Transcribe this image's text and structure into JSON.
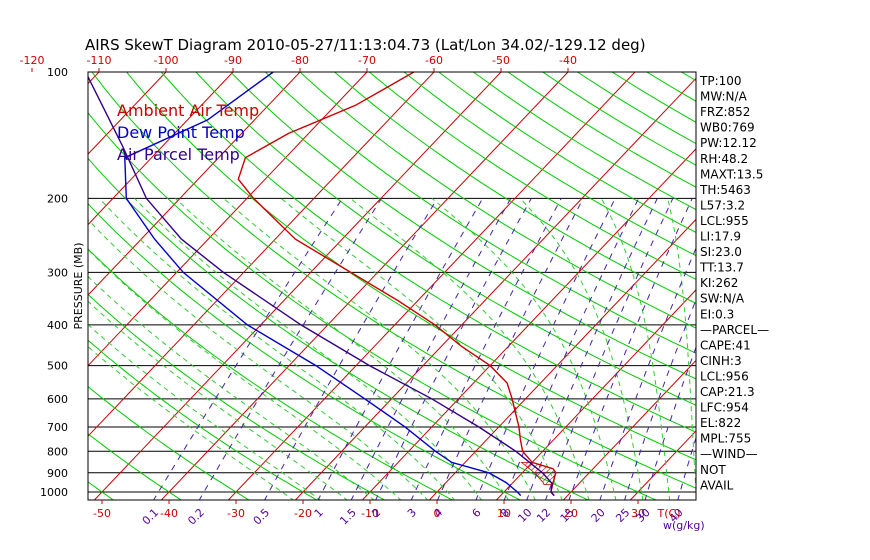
{
  "title": "AIRS SkewT Diagram 2010-05-27/11:13:04.73 (Lat/Lon 34.02/-129.12 deg)",
  "colors": {
    "ambient": "#cc0000",
    "dewpoint": "#0000cc",
    "parcel": "#330088",
    "isotherm": "#cc0000",
    "dry_adiabat": "#00cc00",
    "moist_adiabat": "#33cc33",
    "mixing_ratio": "#4422aa",
    "isobar": "#000000",
    "top_ticks": "#cc0000",
    "bottom_temp_ticks": "#cc0000",
    "mixing_ticks": "#550099"
  },
  "chart_data": {
    "type": "line",
    "subtype": "skew-t log-p",
    "ylabel": "PRESSURE (MB)",
    "y_scale": "log",
    "ylim": [
      1050,
      100
    ],
    "y_ticks": [
      100,
      200,
      300,
      400,
      500,
      600,
      700,
      800,
      900,
      1000
    ],
    "top_temp_ticks": [
      -120,
      -110,
      -100,
      -90,
      -80,
      -70,
      -60,
      -50,
      -40
    ],
    "bottom_temp_ticks": [
      -50,
      -40,
      -30,
      -20,
      -10,
      0,
      10,
      20,
      30
    ],
    "bottom_temp_label": "T(C)",
    "mixing_ratio_ticks": [
      "0.1",
      "0.2",
      "0.5",
      "1",
      "1.5",
      "2",
      "3",
      "4",
      "6",
      "8",
      "10",
      "12",
      "15",
      "20",
      "25",
      "30",
      "40"
    ],
    "mixing_ratio_label": "w(g/kg)",
    "legend": [
      "Ambient Air Temp",
      "Dew Point Temp",
      "Air Parcel Temp"
    ],
    "legend_position": "top-left",
    "series": [
      {
        "name": "Ambient Air Temp",
        "points": [
          {
            "p": 100,
            "t": -63
          },
          {
            "p": 120,
            "t": -67
          },
          {
            "p": 140,
            "t": -73
          },
          {
            "p": 160,
            "t": -76
          },
          {
            "p": 180,
            "t": -74
          },
          {
            "p": 200,
            "t": -69
          },
          {
            "p": 250,
            "t": -57
          },
          {
            "p": 300,
            "t": -44
          },
          {
            "p": 350,
            "t": -33
          },
          {
            "p": 400,
            "t": -24
          },
          {
            "p": 450,
            "t": -17
          },
          {
            "p": 500,
            "t": -10
          },
          {
            "p": 550,
            "t": -5
          },
          {
            "p": 600,
            "t": -2
          },
          {
            "p": 700,
            "t": 3
          },
          {
            "p": 750,
            "t": 5
          },
          {
            "p": 800,
            "t": 7
          },
          {
            "p": 850,
            "t": 10
          },
          {
            "p": 880,
            "t": 14
          },
          {
            "p": 900,
            "t": 15
          },
          {
            "p": 950,
            "t": 16
          },
          {
            "p": 1000,
            "t": 17
          },
          {
            "p": 1020,
            "t": 18
          }
        ]
      },
      {
        "name": "Dew Point Temp",
        "points": [
          {
            "p": 100,
            "t": -84
          },
          {
            "p": 130,
            "t": -87
          },
          {
            "p": 160,
            "t": -94
          },
          {
            "p": 200,
            "t": -88
          },
          {
            "p": 250,
            "t": -78
          },
          {
            "p": 300,
            "t": -69
          },
          {
            "p": 400,
            "t": -52
          },
          {
            "p": 500,
            "t": -36
          },
          {
            "p": 600,
            "t": -24
          },
          {
            "p": 700,
            "t": -14
          },
          {
            "p": 800,
            "t": -6
          },
          {
            "p": 850,
            "t": -2
          },
          {
            "p": 900,
            "t": 5
          },
          {
            "p": 950,
            "t": 9
          },
          {
            "p": 1000,
            "t": 12
          },
          {
            "p": 1020,
            "t": 13
          }
        ]
      },
      {
        "name": "Air Parcel Temp",
        "points": [
          {
            "p": 100,
            "t": -112
          },
          {
            "p": 150,
            "t": -96
          },
          {
            "p": 200,
            "t": -85
          },
          {
            "p": 250,
            "t": -74
          },
          {
            "p": 300,
            "t": -63
          },
          {
            "p": 400,
            "t": -44
          },
          {
            "p": 500,
            "t": -28
          },
          {
            "p": 600,
            "t": -14
          },
          {
            "p": 700,
            "t": -3
          },
          {
            "p": 800,
            "t": 6
          },
          {
            "p": 900,
            "t": 13
          },
          {
            "p": 955,
            "t": 16
          },
          {
            "p": 1000,
            "t": 17
          },
          {
            "p": 1020,
            "t": 18
          }
        ]
      }
    ],
    "indices": [
      "TP:100",
      "MW:N/A",
      "FRZ:852",
      "WB0:769",
      "PW:12.12",
      "RH:48.2",
      "MAXT:13.5",
      "TH:5463",
      "L57:3.2",
      "LCL:955",
      "LI:17.9",
      "SI:23.0",
      "TT:13.7",
      "KI:262",
      "SW:N/A",
      "EI:0.3",
      "—PARCEL—",
      "CAPE:41",
      "CINH:3",
      "LCL:956",
      "CAP:21.3",
      "LFC:954",
      "EL:822",
      "MPL:755",
      "—WIND—",
      "NOT",
      "AVAIL"
    ]
  }
}
